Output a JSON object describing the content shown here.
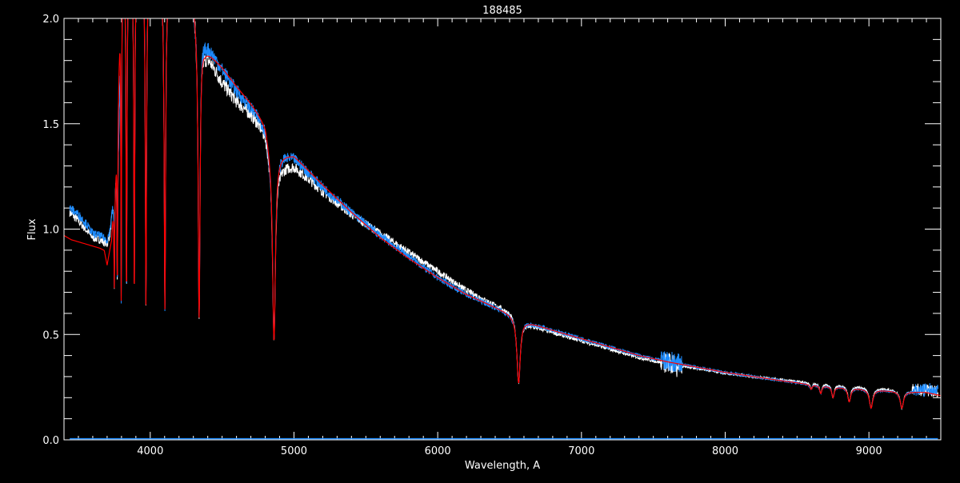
{
  "chart_data": {
    "type": "line",
    "title": "188485",
    "xlabel": "Wavelength, A",
    "ylabel": "Flux",
    "xlim": [
      3400,
      9500
    ],
    "ylim": [
      0.0,
      2.0
    ],
    "xticks": [
      "4000",
      "5000",
      "6000",
      "7000",
      "8000",
      "9000"
    ],
    "yticks": [
      "0.0",
      "0.5",
      "1.0",
      "1.5",
      "2.0"
    ],
    "grid": false,
    "legend": "none",
    "colors": {
      "background": "#000000",
      "axes": "#ffffff",
      "observed": "#ffffff",
      "observed_alt": "#1e8cff",
      "model": "#ff0000",
      "error": "#1e8cff"
    },
    "series": [
      {
        "color": "#ffffff",
        "continuum": [
          [
            3440,
            1.08
          ],
          [
            3500,
            1.04
          ],
          [
            3550,
            1.0
          ],
          [
            3600,
            0.96
          ],
          [
            3650,
            0.95
          ],
          [
            3700,
            0.93
          ],
          [
            3720,
            0.98
          ],
          [
            3750,
            1.2
          ],
          [
            3780,
            1.5
          ],
          [
            3800,
            2.3
          ],
          [
            4300,
            2.1
          ],
          [
            4380,
            1.85
          ],
          [
            4500,
            1.7
          ],
          [
            4600,
            1.61
          ],
          [
            4700,
            1.55
          ],
          [
            4800,
            1.47
          ],
          [
            4830,
            1.38
          ],
          [
            4900,
            1.3
          ],
          [
            5000,
            1.3
          ],
          [
            5200,
            1.18
          ],
          [
            5400,
            1.07
          ],
          [
            5600,
            0.98
          ],
          [
            5800,
            0.89
          ],
          [
            6000,
            0.8
          ],
          [
            6200,
            0.71
          ],
          [
            6400,
            0.64
          ],
          [
            6500,
            0.61
          ],
          [
            6620,
            0.55
          ],
          [
            6800,
            0.51
          ],
          [
            7000,
            0.47
          ],
          [
            7200,
            0.43
          ],
          [
            7400,
            0.39
          ],
          [
            7600,
            0.36
          ],
          [
            7800,
            0.34
          ],
          [
            8000,
            0.315
          ],
          [
            8200,
            0.3
          ],
          [
            8400,
            0.285
          ],
          [
            8600,
            0.27
          ],
          [
            9000,
            0.25
          ],
          [
            9200,
            0.235
          ],
          [
            9480,
            0.22
          ]
        ]
      },
      {
        "color": "#1e8cff",
        "continuum": [
          [
            3440,
            1.1
          ],
          [
            3500,
            1.07
          ],
          [
            3550,
            1.03
          ],
          [
            3600,
            0.98
          ],
          [
            3650,
            0.97
          ],
          [
            3700,
            0.95
          ],
          [
            3720,
            1.0
          ],
          [
            3750,
            1.2
          ],
          [
            3780,
            1.5
          ],
          [
            3800,
            2.3
          ],
          [
            4300,
            2.1
          ],
          [
            4380,
            1.9
          ],
          [
            4500,
            1.76
          ],
          [
            4600,
            1.66
          ],
          [
            4700,
            1.58
          ],
          [
            4800,
            1.5
          ],
          [
            4830,
            1.4
          ],
          [
            4900,
            1.36
          ],
          [
            5000,
            1.34
          ],
          [
            5200,
            1.2
          ],
          [
            5400,
            1.08
          ],
          [
            5600,
            0.97
          ],
          [
            5800,
            0.87
          ],
          [
            6000,
            0.77
          ],
          [
            6200,
            0.69
          ],
          [
            6400,
            0.63
          ],
          [
            6500,
            0.6
          ],
          [
            6620,
            0.56
          ],
          [
            6800,
            0.52
          ],
          [
            7000,
            0.48
          ],
          [
            7200,
            0.44
          ],
          [
            7400,
            0.4
          ],
          [
            7600,
            0.37
          ],
          [
            7800,
            0.345
          ],
          [
            8000,
            0.32
          ],
          [
            8200,
            0.3
          ],
          [
            8400,
            0.28
          ],
          [
            8600,
            0.262
          ],
          [
            9000,
            0.24
          ],
          [
            9200,
            0.23
          ],
          [
            9480,
            0.225
          ]
        ]
      },
      {
        "color": "#ff0000",
        "continuum": [
          [
            3400,
            0.97
          ],
          [
            3450,
            0.95
          ],
          [
            3500,
            0.94
          ],
          [
            3600,
            0.92
          ],
          [
            3650,
            0.91
          ],
          [
            3680,
            0.9
          ],
          [
            3700,
            0.83
          ],
          [
            3730,
            0.95
          ],
          [
            3760,
            1.3
          ],
          [
            3800,
            2.3
          ],
          [
            4300,
            2.1
          ],
          [
            4380,
            1.86
          ],
          [
            4500,
            1.77
          ],
          [
            4600,
            1.68
          ],
          [
            4700,
            1.6
          ],
          [
            4800,
            1.51
          ],
          [
            4830,
            1.42
          ],
          [
            4900,
            1.36
          ],
          [
            5000,
            1.35
          ],
          [
            5200,
            1.21
          ],
          [
            5400,
            1.08
          ],
          [
            5600,
            0.96
          ],
          [
            5800,
            0.86
          ],
          [
            6000,
            0.77
          ],
          [
            6200,
            0.69
          ],
          [
            6400,
            0.63
          ],
          [
            6500,
            0.6
          ],
          [
            6620,
            0.56
          ],
          [
            6800,
            0.52
          ],
          [
            7000,
            0.48
          ],
          [
            7200,
            0.44
          ],
          [
            7400,
            0.4
          ],
          [
            7600,
            0.37
          ],
          [
            7800,
            0.345
          ],
          [
            8000,
            0.32
          ],
          [
            8200,
            0.3
          ],
          [
            8400,
            0.28
          ],
          [
            8600,
            0.262
          ],
          [
            9000,
            0.24
          ],
          [
            9200,
            0.23
          ],
          [
            9400,
            0.225
          ],
          [
            9500,
            0.21
          ]
        ]
      }
    ],
    "lines": [
      {
        "center": 3750,
        "min": 0.72,
        "width": 3
      },
      {
        "center": 3771,
        "min": 0.7,
        "width": 3
      },
      {
        "center": 3798,
        "min": 0.66,
        "width": 3
      },
      {
        "center": 3835,
        "min": 0.66,
        "width": 4
      },
      {
        "center": 3889,
        "min": 0.65,
        "width": 4
      },
      {
        "center": 3970,
        "min": 0.64,
        "width": 5
      },
      {
        "center": 4102,
        "min": 0.62,
        "width": 6
      },
      {
        "center": 4340,
        "min": 0.58,
        "width": 8
      },
      {
        "center": 4861,
        "min": 0.47,
        "width": 12
      },
      {
        "center": 6563,
        "min": 0.27,
        "width": 14
      },
      {
        "center": 8598,
        "min": 0.24,
        "width": 8
      },
      {
        "center": 8665,
        "min": 0.22,
        "width": 9
      },
      {
        "center": 8750,
        "min": 0.2,
        "width": 10
      },
      {
        "center": 8863,
        "min": 0.18,
        "width": 12
      },
      {
        "center": 9015,
        "min": 0.15,
        "width": 14
      },
      {
        "center": 9229,
        "min": 0.15,
        "width": 14
      }
    ],
    "error": {
      "color": "#1e8cff",
      "level": 0.005,
      "range": [
        3440,
        9480
      ]
    }
  }
}
